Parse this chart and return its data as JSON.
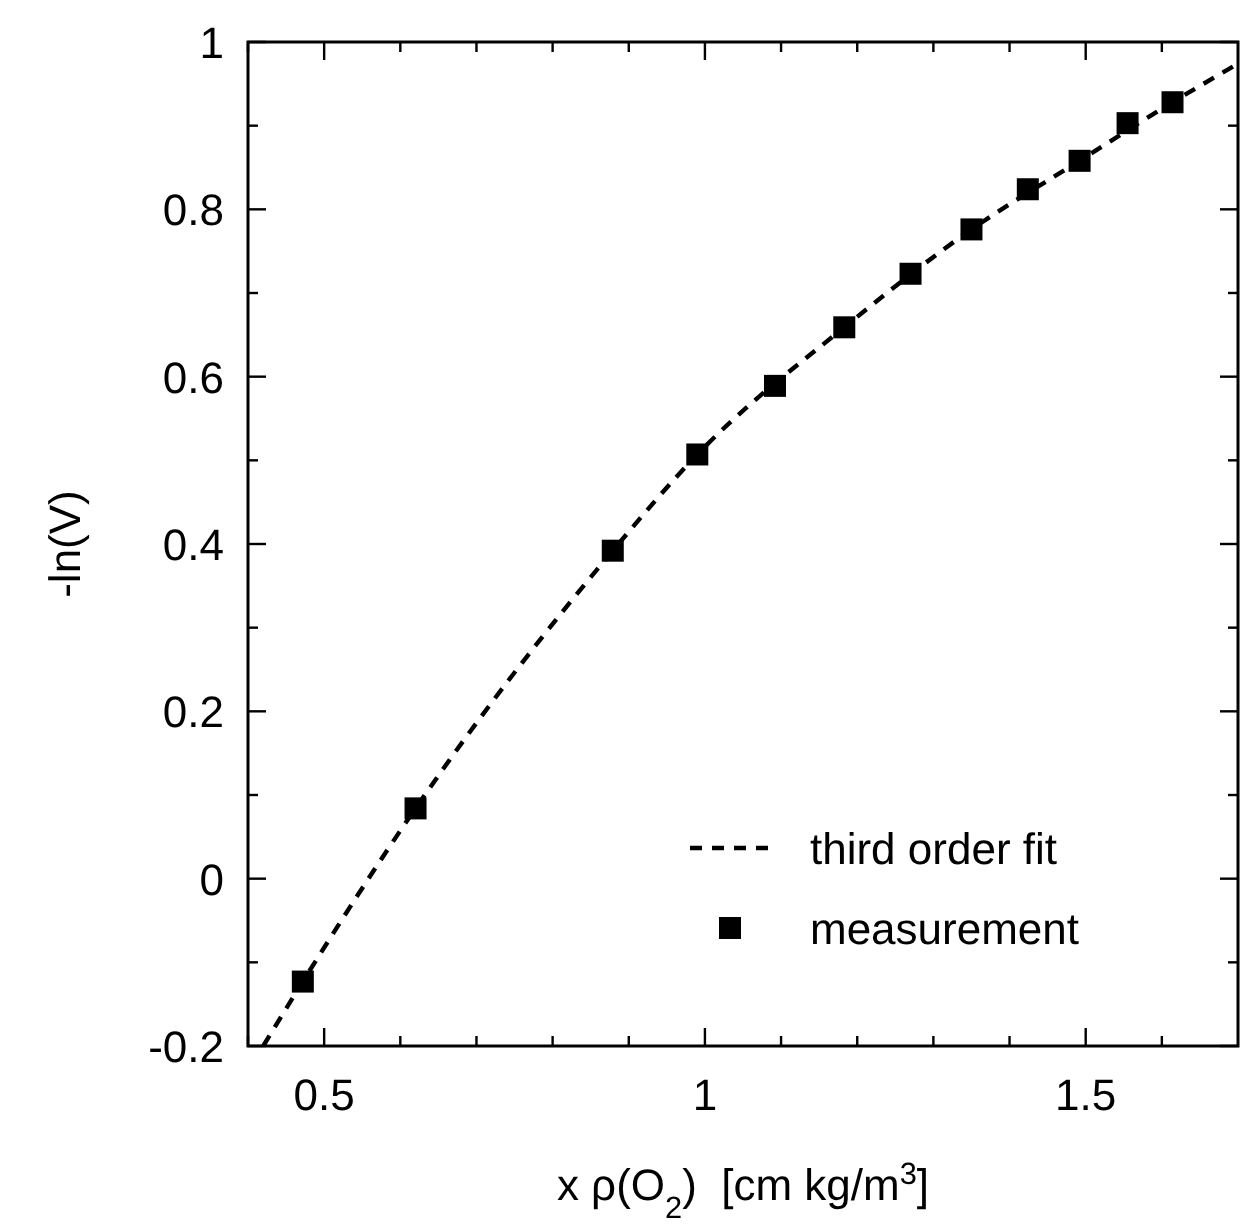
{
  "chart_data": {
    "type": "scatter",
    "xlabel": "x ρ(O$_{2}$)  [cm kg/m$^{3}$]",
    "ylabel": "-ln(V)",
    "xlim": [
      0.4,
      1.7
    ],
    "ylim": [
      -0.2,
      1
    ],
    "xticks": [
      {
        "value": 0.4,
        "label": null
      },
      0.5,
      {
        "value": 0.6,
        "label": null
      },
      {
        "value": 0.7,
        "label": null
      },
      {
        "value": 0.8,
        "label": null
      },
      {
        "value": 0.9,
        "label": null
      },
      1,
      {
        "value": 1.1,
        "label": null
      },
      {
        "value": 1.2,
        "label": null
      },
      {
        "value": 1.3,
        "label": null
      },
      {
        "value": 1.4,
        "label": null
      },
      1.5,
      {
        "value": 1.6,
        "label": null
      }
    ],
    "yticks": [
      -0.2,
      {
        "value": -0.1,
        "label": null
      },
      0,
      {
        "value": 0.1,
        "label": null
      },
      0.2,
      {
        "value": 0.3,
        "label": null
      },
      0.4,
      {
        "value": 0.5,
        "label": null
      },
      0.6,
      {
        "value": 0.7,
        "label": null
      },
      0.8,
      {
        "value": 0.9,
        "label": null
      },
      1
    ],
    "legend": "bottom right",
    "grid": false,
    "series": [
      {
        "name": "third order fit",
        "type": "line",
        "line_style": "dashed",
        "color": "#000000",
        "x": [
          0.42,
          0.472,
          0.62,
          0.879,
          0.99,
          1.183,
          1.35,
          1.492,
          1.614,
          1.7
        ],
        "values": [
          -0.2,
          -0.123,
          0.084,
          0.392,
          0.507,
          0.659,
          0.776,
          0.858,
          0.928,
          0.974
        ]
      },
      {
        "name": "measurement",
        "marker": "square",
        "color": "#000000",
        "x": [
          0.472,
          0.62,
          0.879,
          0.99,
          1.092,
          1.183,
          1.27,
          1.35,
          1.424,
          1.492,
          1.555,
          1.614
        ],
        "values": [
          -0.123,
          0.084,
          0.392,
          0.507,
          0.589,
          0.659,
          0.723,
          0.776,
          0.824,
          0.858,
          0.903,
          0.928
        ]
      }
    ]
  }
}
